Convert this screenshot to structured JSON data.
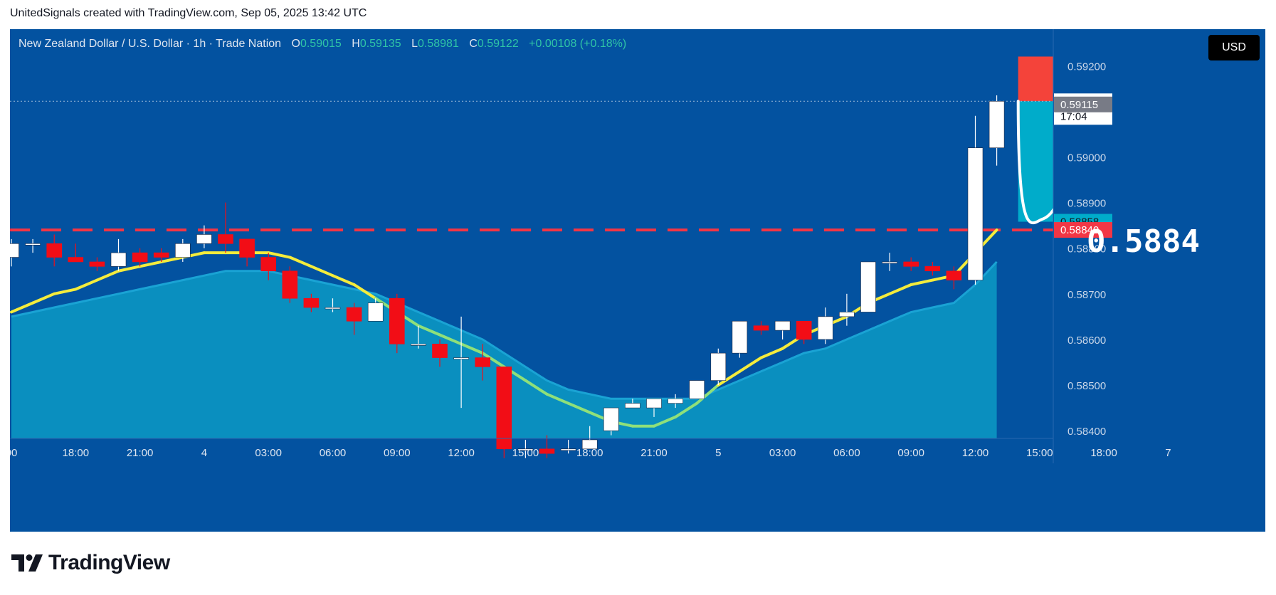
{
  "attribution": "UnitedSignals created with TradingView.com, Sep 05, 2025 13:42 UTC",
  "legend": {
    "symbol": "New Zealand Dollar / U.S. Dollar · 1h · Trade Nation",
    "o_label": "O",
    "o": "0.59015",
    "h_label": "H",
    "h": "0.59135",
    "l_label": "L",
    "l": "0.58981",
    "c_label": "C",
    "c": "0.59122",
    "change": "+0.00108 (+0.18%)"
  },
  "currency_button": "USD",
  "brand": "TradingView",
  "annotation_text": "0.5884",
  "colors": {
    "background": "#0352a0",
    "up": "#ffffff",
    "down": "#f20d16",
    "ma_fast": "#f4ec3c",
    "ma_slow_fill": "#0a8fbf",
    "stop_zone": "#f4433a",
    "target_zone": "#00acca",
    "level_line": "#f23645"
  },
  "chart_data": {
    "type": "candlestick",
    "timeframe": "1h",
    "ylim": [
      0.5833,
      0.5928
    ],
    "y_ticks": [
      0.592,
      0.591,
      0.59,
      0.589,
      0.588,
      0.587,
      0.586,
      0.585,
      0.584
    ],
    "y_tick_labels": [
      "0.59200",
      "0.59100",
      "0.59000",
      "0.58900",
      "0.58800",
      "0.58700",
      "0.58600",
      "0.58500",
      "0.58400"
    ],
    "x_tick_labels": [
      "00",
      "18:00",
      "21:00",
      "4",
      "03:00",
      "06:00",
      "09:00",
      "12:00",
      "15:00",
      "18:00",
      "21:00",
      "5",
      "03:00",
      "06:00",
      "09:00",
      "12:00",
      "15:00",
      "18:00",
      "7"
    ],
    "x_tick_index": [
      0,
      3,
      6,
      9,
      12,
      15,
      18,
      21,
      24,
      27,
      30,
      33,
      36,
      39,
      42,
      45,
      48,
      51,
      54
    ],
    "candles": [
      {
        "o": 0.5878,
        "h": 0.5882,
        "l": 0.5876,
        "c": 0.5881
      },
      {
        "o": 0.5881,
        "h": 0.5882,
        "l": 0.5879,
        "c": 0.5881
      },
      {
        "o": 0.5881,
        "h": 0.5883,
        "l": 0.5876,
        "c": 0.5878
      },
      {
        "o": 0.5878,
        "h": 0.5881,
        "l": 0.5877,
        "c": 0.5877
      },
      {
        "o": 0.5877,
        "h": 0.5878,
        "l": 0.5875,
        "c": 0.5876
      },
      {
        "o": 0.5876,
        "h": 0.5882,
        "l": 0.5875,
        "c": 0.5879
      },
      {
        "o": 0.5879,
        "h": 0.588,
        "l": 0.5876,
        "c": 0.5877
      },
      {
        "o": 0.5879,
        "h": 0.588,
        "l": 0.5877,
        "c": 0.5878
      },
      {
        "o": 0.5878,
        "h": 0.5882,
        "l": 0.5877,
        "c": 0.5881
      },
      {
        "o": 0.5881,
        "h": 0.5885,
        "l": 0.588,
        "c": 0.5883
      },
      {
        "o": 0.5883,
        "h": 0.589,
        "l": 0.5879,
        "c": 0.5881
      },
      {
        "o": 0.5882,
        "h": 0.5882,
        "l": 0.5876,
        "c": 0.5878
      },
      {
        "o": 0.5878,
        "h": 0.5879,
        "l": 0.5873,
        "c": 0.5875
      },
      {
        "o": 0.5875,
        "h": 0.5876,
        "l": 0.5868,
        "c": 0.5869
      },
      {
        "o": 0.5869,
        "h": 0.587,
        "l": 0.5866,
        "c": 0.5867
      },
      {
        "o": 0.5867,
        "h": 0.5869,
        "l": 0.5866,
        "c": 0.5867
      },
      {
        "o": 0.5867,
        "h": 0.5868,
        "l": 0.5861,
        "c": 0.5864
      },
      {
        "o": 0.5864,
        "h": 0.5869,
        "l": 0.5864,
        "c": 0.5868
      },
      {
        "o": 0.5869,
        "h": 0.587,
        "l": 0.5857,
        "c": 0.5859
      },
      {
        "o": 0.5859,
        "h": 0.5863,
        "l": 0.5858,
        "c": 0.5859
      },
      {
        "o": 0.5859,
        "h": 0.586,
        "l": 0.5854,
        "c": 0.5856
      },
      {
        "o": 0.5856,
        "h": 0.5865,
        "l": 0.5845,
        "c": 0.5856
      },
      {
        "o": 0.5856,
        "h": 0.5859,
        "l": 0.5851,
        "c": 0.5854
      },
      {
        "o": 0.5854,
        "h": 0.5854,
        "l": 0.5834,
        "c": 0.5836
      },
      {
        "o": 0.5836,
        "h": 0.5838,
        "l": 0.5834,
        "c": 0.5836
      },
      {
        "o": 0.5836,
        "h": 0.5839,
        "l": 0.5834,
        "c": 0.5835
      },
      {
        "o": 0.5836,
        "h": 0.5838,
        "l": 0.5835,
        "c": 0.5836
      },
      {
        "o": 0.5836,
        "h": 0.5841,
        "l": 0.5836,
        "c": 0.5838
      },
      {
        "o": 0.584,
        "h": 0.5845,
        "l": 0.5839,
        "c": 0.5845
      },
      {
        "o": 0.5845,
        "h": 0.5847,
        "l": 0.5845,
        "c": 0.5846
      },
      {
        "o": 0.5845,
        "h": 0.5847,
        "l": 0.5843,
        "c": 0.5847
      },
      {
        "o": 0.5846,
        "h": 0.5848,
        "l": 0.5845,
        "c": 0.5847
      },
      {
        "o": 0.5847,
        "h": 0.5851,
        "l": 0.5847,
        "c": 0.5851
      },
      {
        "o": 0.5851,
        "h": 0.5858,
        "l": 0.585,
        "c": 0.5857
      },
      {
        "o": 0.5857,
        "h": 0.5864,
        "l": 0.5856,
        "c": 0.5864
      },
      {
        "o": 0.5863,
        "h": 0.5864,
        "l": 0.5861,
        "c": 0.5862
      },
      {
        "o": 0.5862,
        "h": 0.5864,
        "l": 0.586,
        "c": 0.5864
      },
      {
        "o": 0.5864,
        "h": 0.5864,
        "l": 0.5859,
        "c": 0.586
      },
      {
        "o": 0.586,
        "h": 0.5867,
        "l": 0.5859,
        "c": 0.5865
      },
      {
        "o": 0.5865,
        "h": 0.587,
        "l": 0.5863,
        "c": 0.5866
      },
      {
        "o": 0.5866,
        "h": 0.5877,
        "l": 0.5866,
        "c": 0.5877
      },
      {
        "o": 0.5877,
        "h": 0.5879,
        "l": 0.5875,
        "c": 0.5877
      },
      {
        "o": 0.5877,
        "h": 0.5878,
        "l": 0.5875,
        "c": 0.5876
      },
      {
        "o": 0.5876,
        "h": 0.5877,
        "l": 0.5874,
        "c": 0.5875
      },
      {
        "o": 0.5875,
        "h": 0.5876,
        "l": 0.5871,
        "c": 0.5873
      },
      {
        "o": 0.5873,
        "h": 0.5909,
        "l": 0.5872,
        "c": 0.5902
      },
      {
        "o": 0.5902,
        "h": 0.59135,
        "l": 0.58981,
        "c": 0.59122
      }
    ],
    "ma_fast": [
      0.5866,
      0.5868,
      0.587,
      0.5871,
      0.5873,
      0.5875,
      0.5876,
      0.5877,
      0.5878,
      0.5879,
      0.5879,
      0.5879,
      0.5879,
      0.5878,
      0.5876,
      0.5874,
      0.5872,
      0.5869,
      0.5866,
      0.5863,
      0.5861,
      0.5859,
      0.5857,
      0.5854,
      0.5851,
      0.5848,
      0.5846,
      0.5844,
      0.5842,
      0.5841,
      0.5841,
      0.5843,
      0.5846,
      0.585,
      0.5853,
      0.5856,
      0.5858,
      0.5861,
      0.5863,
      0.5865,
      0.5868,
      0.587,
      0.5872,
      0.5873,
      0.5874,
      0.5879,
      0.5884
    ],
    "ma_slow": [
      0.5865,
      0.5866,
      0.5867,
      0.5868,
      0.5869,
      0.587,
      0.5871,
      0.5872,
      0.5873,
      0.5874,
      0.5875,
      0.5875,
      0.5875,
      0.5874,
      0.5873,
      0.5872,
      0.5871,
      0.587,
      0.5868,
      0.5866,
      0.5864,
      0.5862,
      0.586,
      0.5857,
      0.5854,
      0.5851,
      0.5849,
      0.5848,
      0.5847,
      0.5847,
      0.5847,
      0.5847,
      0.5847,
      0.5849,
      0.5851,
      0.5853,
      0.5855,
      0.5857,
      0.5858,
      0.586,
      0.5862,
      0.5864,
      0.5866,
      0.5867,
      0.5868,
      0.5872,
      0.5877
    ],
    "level": 0.5884,
    "position": {
      "side": "short",
      "entry": 0.59122,
      "stop": 0.5922,
      "target": 0.58858,
      "start_index": 47,
      "end_index": 52.5
    },
    "price_labels": [
      {
        "value": 0.59122,
        "text": "0.59122",
        "sub": "17:04",
        "bg": "#ffffff",
        "fg": "#131722"
      },
      {
        "value": 0.59115,
        "text": "0.59115",
        "bg": "#787b86",
        "fg": "#ffffff"
      },
      {
        "value": 0.58858,
        "text": "0.58858",
        "bg": "#00acca",
        "fg": "#131722"
      },
      {
        "value": 0.5884,
        "text": "0.58840",
        "bg": "#f23645",
        "fg": "#ffffff"
      }
    ]
  }
}
